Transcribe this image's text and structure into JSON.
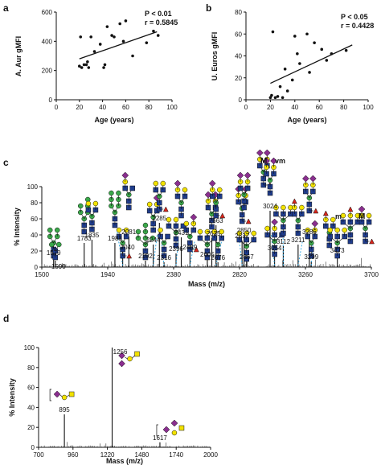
{
  "chart_data": [
    {
      "panel": "a",
      "type": "scatter",
      "xlabel": "Age (years)",
      "ylabel": "A. Aur gMFI",
      "xlim": [
        0,
        100
      ],
      "ylim": [
        0,
        600
      ],
      "x_ticks": [
        "0",
        "20",
        "40",
        "60",
        "80",
        "100"
      ],
      "y_ticks": [
        "0",
        "200",
        "400",
        "600"
      ],
      "annotation": [
        "P < 0.01",
        "r = 0.5845"
      ],
      "trendline": {
        "x": [
          20,
          87
        ],
        "y": [
          280,
          465
        ]
      },
      "points": [
        {
          "x": 20,
          "y": 230
        },
        {
          "x": 21,
          "y": 430
        },
        {
          "x": 22,
          "y": 220
        },
        {
          "x": 24,
          "y": 240
        },
        {
          "x": 26,
          "y": 240
        },
        {
          "x": 27,
          "y": 260
        },
        {
          "x": 28,
          "y": 220
        },
        {
          "x": 30,
          "y": 430
        },
        {
          "x": 33,
          "y": 330
        },
        {
          "x": 38,
          "y": 380
        },
        {
          "x": 41,
          "y": 220
        },
        {
          "x": 42,
          "y": 240
        },
        {
          "x": 44,
          "y": 500
        },
        {
          "x": 48,
          "y": 440
        },
        {
          "x": 50,
          "y": 430
        },
        {
          "x": 55,
          "y": 520
        },
        {
          "x": 58,
          "y": 400
        },
        {
          "x": 60,
          "y": 540
        },
        {
          "x": 66,
          "y": 300
        },
        {
          "x": 78,
          "y": 390
        },
        {
          "x": 84,
          "y": 470
        },
        {
          "x": 88,
          "y": 440
        }
      ]
    },
    {
      "panel": "b",
      "type": "scatter",
      "xlabel": "Age (years)",
      "ylabel": "U. Euros gMFI",
      "xlim": [
        0,
        100
      ],
      "ylim": [
        0,
        80
      ],
      "x_ticks": [
        "0",
        "20",
        "40",
        "60",
        "80",
        "100"
      ],
      "y_ticks": [
        "0",
        "20",
        "40",
        "60",
        "80"
      ],
      "annotation": [
        "P < 0.05",
        "r = 0.4428"
      ],
      "trendline": {
        "x": [
          20,
          87
        ],
        "y": [
          15,
          50
        ]
      },
      "points": [
        {
          "x": 20,
          "y": 2
        },
        {
          "x": 21,
          "y": 4
        },
        {
          "x": 22,
          "y": 62
        },
        {
          "x": 24,
          "y": 2
        },
        {
          "x": 26,
          "y": 3
        },
        {
          "x": 28,
          "y": 12
        },
        {
          "x": 30,
          "y": 2
        },
        {
          "x": 32,
          "y": 28
        },
        {
          "x": 34,
          "y": 8
        },
        {
          "x": 38,
          "y": 18
        },
        {
          "x": 40,
          "y": 58
        },
        {
          "x": 42,
          "y": 42
        },
        {
          "x": 44,
          "y": 33
        },
        {
          "x": 50,
          "y": 60
        },
        {
          "x": 52,
          "y": 25
        },
        {
          "x": 56,
          "y": 52
        },
        {
          "x": 62,
          "y": 46
        },
        {
          "x": 66,
          "y": 36
        },
        {
          "x": 70,
          "y": 42
        },
        {
          "x": 82,
          "y": 45
        }
      ]
    },
    {
      "panel": "c",
      "type": "line",
      "xlabel": "Mass (m/z)",
      "ylabel": "% Intensity",
      "xlim": [
        1500,
        3700
      ],
      "ylim": [
        0,
        100
      ],
      "x_ticks": [
        "1500",
        "1940",
        "2380",
        "2820",
        "3260",
        "3700"
      ],
      "y_ticks": [
        "0",
        "20",
        "40",
        "60",
        "80",
        "100"
      ],
      "peaks": [
        {
          "mass": 1579,
          "intensity": 12,
          "label": "1579"
        },
        {
          "mass": 1590,
          "intensity": 8,
          "label": "1590"
        },
        {
          "mass": 1783,
          "intensity": 30,
          "label": "1783"
        },
        {
          "mass": 1835,
          "intensity": 34,
          "label": "1835"
        },
        {
          "mass": 1988,
          "intensity": 30,
          "label": "1988"
        },
        {
          "mass": 2040,
          "intensity": 19,
          "label": "2040"
        },
        {
          "mass": 2081,
          "intensity": 38,
          "label": "2081"
        },
        {
          "mass": 2192,
          "intensity": 8,
          "label": "2192"
        },
        {
          "mass": 2244,
          "intensity": 28,
          "label": "2244"
        },
        {
          "mass": 2285,
          "intensity": 55,
          "label": "2285"
        },
        {
          "mass": 2316,
          "intensity": 6,
          "label": "2316"
        },
        {
          "mass": 2396,
          "intensity": 17,
          "label": "2396"
        },
        {
          "mass": 2431,
          "intensity": 37,
          "label": "2431"
        },
        {
          "mass": 2489,
          "intensity": 19,
          "label": "2489"
        },
        {
          "mass": 2605,
          "intensity": 10,
          "label": "2605"
        },
        {
          "mass": 2635,
          "intensity": 36,
          "label": "2635"
        },
        {
          "mass": 2663,
          "intensity": 52,
          "label": "2663"
        },
        {
          "mass": 2676,
          "intensity": 6,
          "label": "2676"
        },
        {
          "mass": 2837,
          "intensity": 33,
          "label": "2837"
        },
        {
          "mass": 2850,
          "intensity": 40,
          "label": "2850"
        },
        {
          "mass": 2867,
          "intensity": 7,
          "label": "2867"
        },
        {
          "mass": 3024,
          "intensity": 70,
          "label": "3024"
        },
        {
          "mass": 3054,
          "intensity": 18,
          "label": "3054"
        },
        {
          "mass": 3112,
          "intensity": 26,
          "label": "3112"
        },
        {
          "mass": 3211,
          "intensity": 28,
          "label": "3211"
        },
        {
          "mass": 3286,
          "intensity": 38,
          "label": "3286"
        },
        {
          "mass": 3299,
          "intensity": 7,
          "label": "3299"
        },
        {
          "mass": 3473,
          "intensity": 15,
          "label": "3473"
        }
      ],
      "annotation": [
        "M",
        "vm",
        "m",
        "M"
      ]
    },
    {
      "panel": "d",
      "type": "line",
      "xlabel": "Mass (m/z)",
      "ylabel": "% Intensity",
      "xlim": [
        700,
        2000
      ],
      "ylim": [
        0,
        100
      ],
      "x_ticks": [
        "700",
        "960",
        "1220",
        "1480",
        "1740",
        "2000"
      ],
      "y_ticks": [
        "0",
        "20",
        "40",
        "60",
        "80",
        "100"
      ],
      "peaks": [
        {
          "mass": 895,
          "intensity": 33,
          "label": "895"
        },
        {
          "mass": 1256,
          "intensity": 100,
          "label": "1256"
        },
        {
          "mass": 1617,
          "intensity": 5,
          "label": "1617"
        }
      ]
    }
  ],
  "panel_labels": [
    "a",
    "b",
    "c",
    "d"
  ],
  "colors": {
    "mannose_circle": "#3aa84a",
    "galactose_circle": "#f2e200",
    "glcnac_square": "#1f3c8c",
    "fucose_triangle": "#d8261c",
    "sialic_diamond": "#8a2e8f",
    "hexnac_yellow_square": "#f2e200",
    "guide_line": "#22a0e0"
  }
}
